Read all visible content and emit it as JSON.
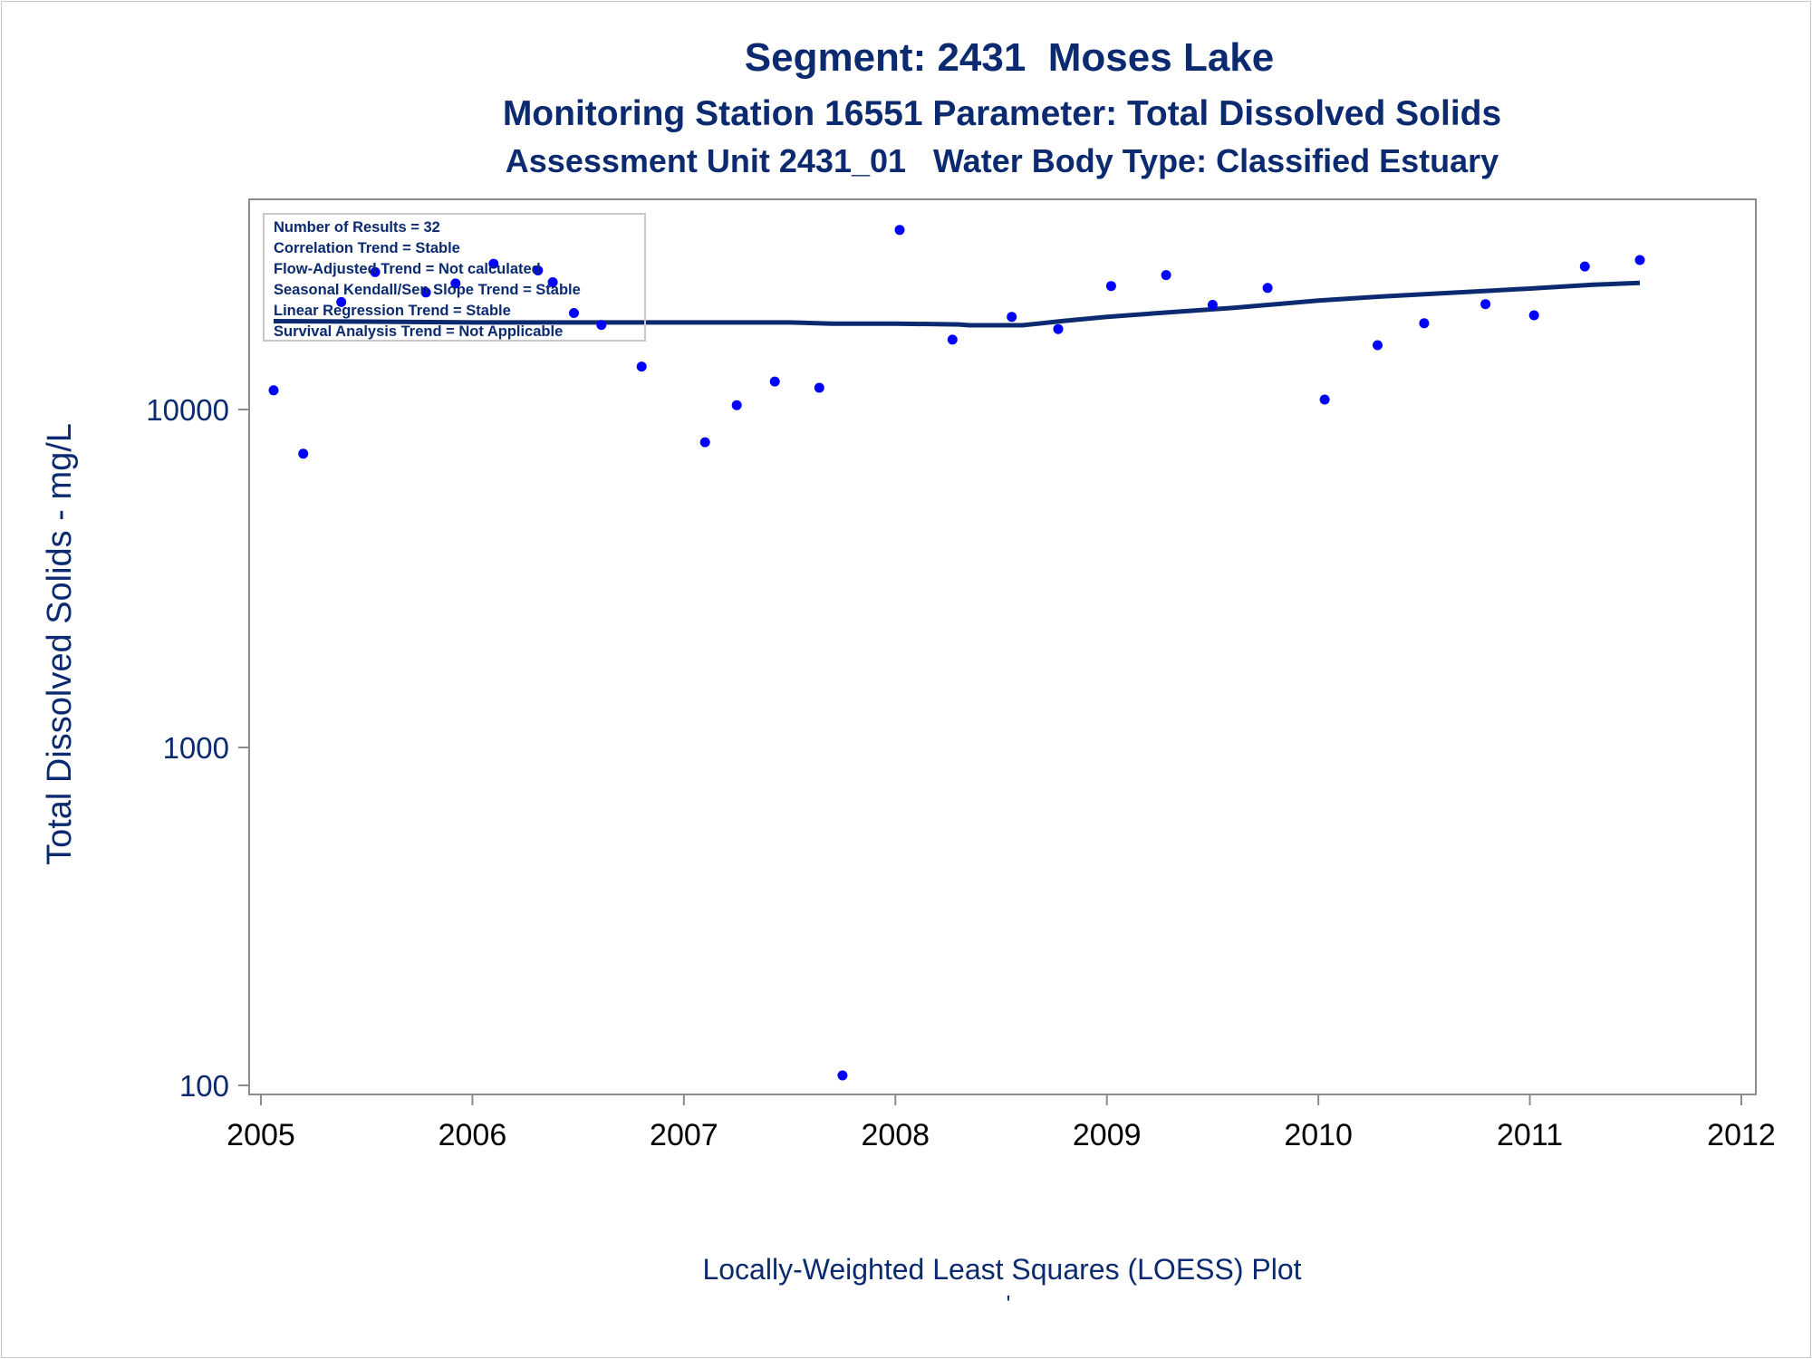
{
  "chart_data": {
    "type": "scatter",
    "title": "Segment: 2431  Moses Lake",
    "subtitle_1": "Monitoring Station 16551 Parameter: Total Dissolved Solids",
    "subtitle_2": "Assessment Unit 2431_01   Water Body Type: Classified Estuary",
    "ylabel": "Total Dissolved Solids - mg/L",
    "footnote": "Locally-Weighted Least Squares (LOESS) Plot",
    "footnote_mark": "'",
    "y_scale": "log",
    "xlim": [
      2005,
      2012
    ],
    "ylim": [
      95,
      32500
    ],
    "x_ticks": [
      2005,
      2006,
      2007,
      2008,
      2009,
      2010,
      2011,
      2012
    ],
    "x_tick_labels": [
      "2005",
      "2006",
      "2007",
      "2008",
      "2009",
      "2010",
      "2011",
      "2012"
    ],
    "y_ticks": [
      100,
      1000,
      10000
    ],
    "y_tick_labels": [
      "100",
      "1000",
      "10000"
    ],
    "grid": false,
    "legend_placement": "top-left",
    "stats_box": [
      "Number of Results = 32",
      "Correlation Trend = Stable",
      "Flow-Adjusted Trend = Not calculated",
      "Seasonal Kendall/Sen Slope Trend = Stable",
      "Linear Regression Trend = Stable",
      "Survival Analysis Trend = Not Applicable"
    ],
    "series": [
      {
        "kind": "points",
        "x": [
          2005.06,
          2005.2,
          2005.38,
          2005.54,
          2005.78,
          2005.92,
          2006.1,
          2006.31,
          2006.38,
          2006.48,
          2006.61,
          2006.8,
          2007.1,
          2007.25,
          2007.43,
          2007.64,
          2007.75,
          2008.02,
          2008.27,
          2008.55,
          2008.77,
          2009.02,
          2009.28,
          2009.5,
          2009.76,
          2010.03,
          2010.28,
          2010.5,
          2010.79,
          2011.02,
          2011.26,
          2011.52
        ],
        "y": [
          11400,
          7400,
          20800,
          25500,
          22200,
          23600,
          27000,
          25800,
          23800,
          19300,
          17800,
          13400,
          8000,
          10300,
          12100,
          11600,
          107,
          34000,
          16100,
          18800,
          17300,
          23200,
          25000,
          20400,
          22900,
          10700,
          15500,
          18000,
          20500,
          19000,
          26500,
          27700
        ]
      },
      {
        "kind": "loess_line",
        "x": [
          2005.06,
          2005.5,
          2006.0,
          2006.5,
          2007.0,
          2007.5,
          2007.7,
          2008.0,
          2008.3,
          2008.35,
          2008.6,
          2008.8,
          2009.0,
          2009.3,
          2009.6,
          2010.0,
          2010.3,
          2010.6,
          2011.0,
          2011.3,
          2011.52
        ],
        "y": [
          18250,
          18200,
          18100,
          18100,
          18100,
          18100,
          17950,
          17950,
          17850,
          17750,
          17750,
          18300,
          18800,
          19400,
          20000,
          21000,
          21600,
          22100,
          22800,
          23400,
          23700
        ]
      }
    ],
    "colors": {
      "text": "#0b2a6f",
      "points": "#0000ff",
      "line": "#0b2a6f",
      "axis": "#8c8c8c",
      "tick_labels": "#000000"
    }
  }
}
